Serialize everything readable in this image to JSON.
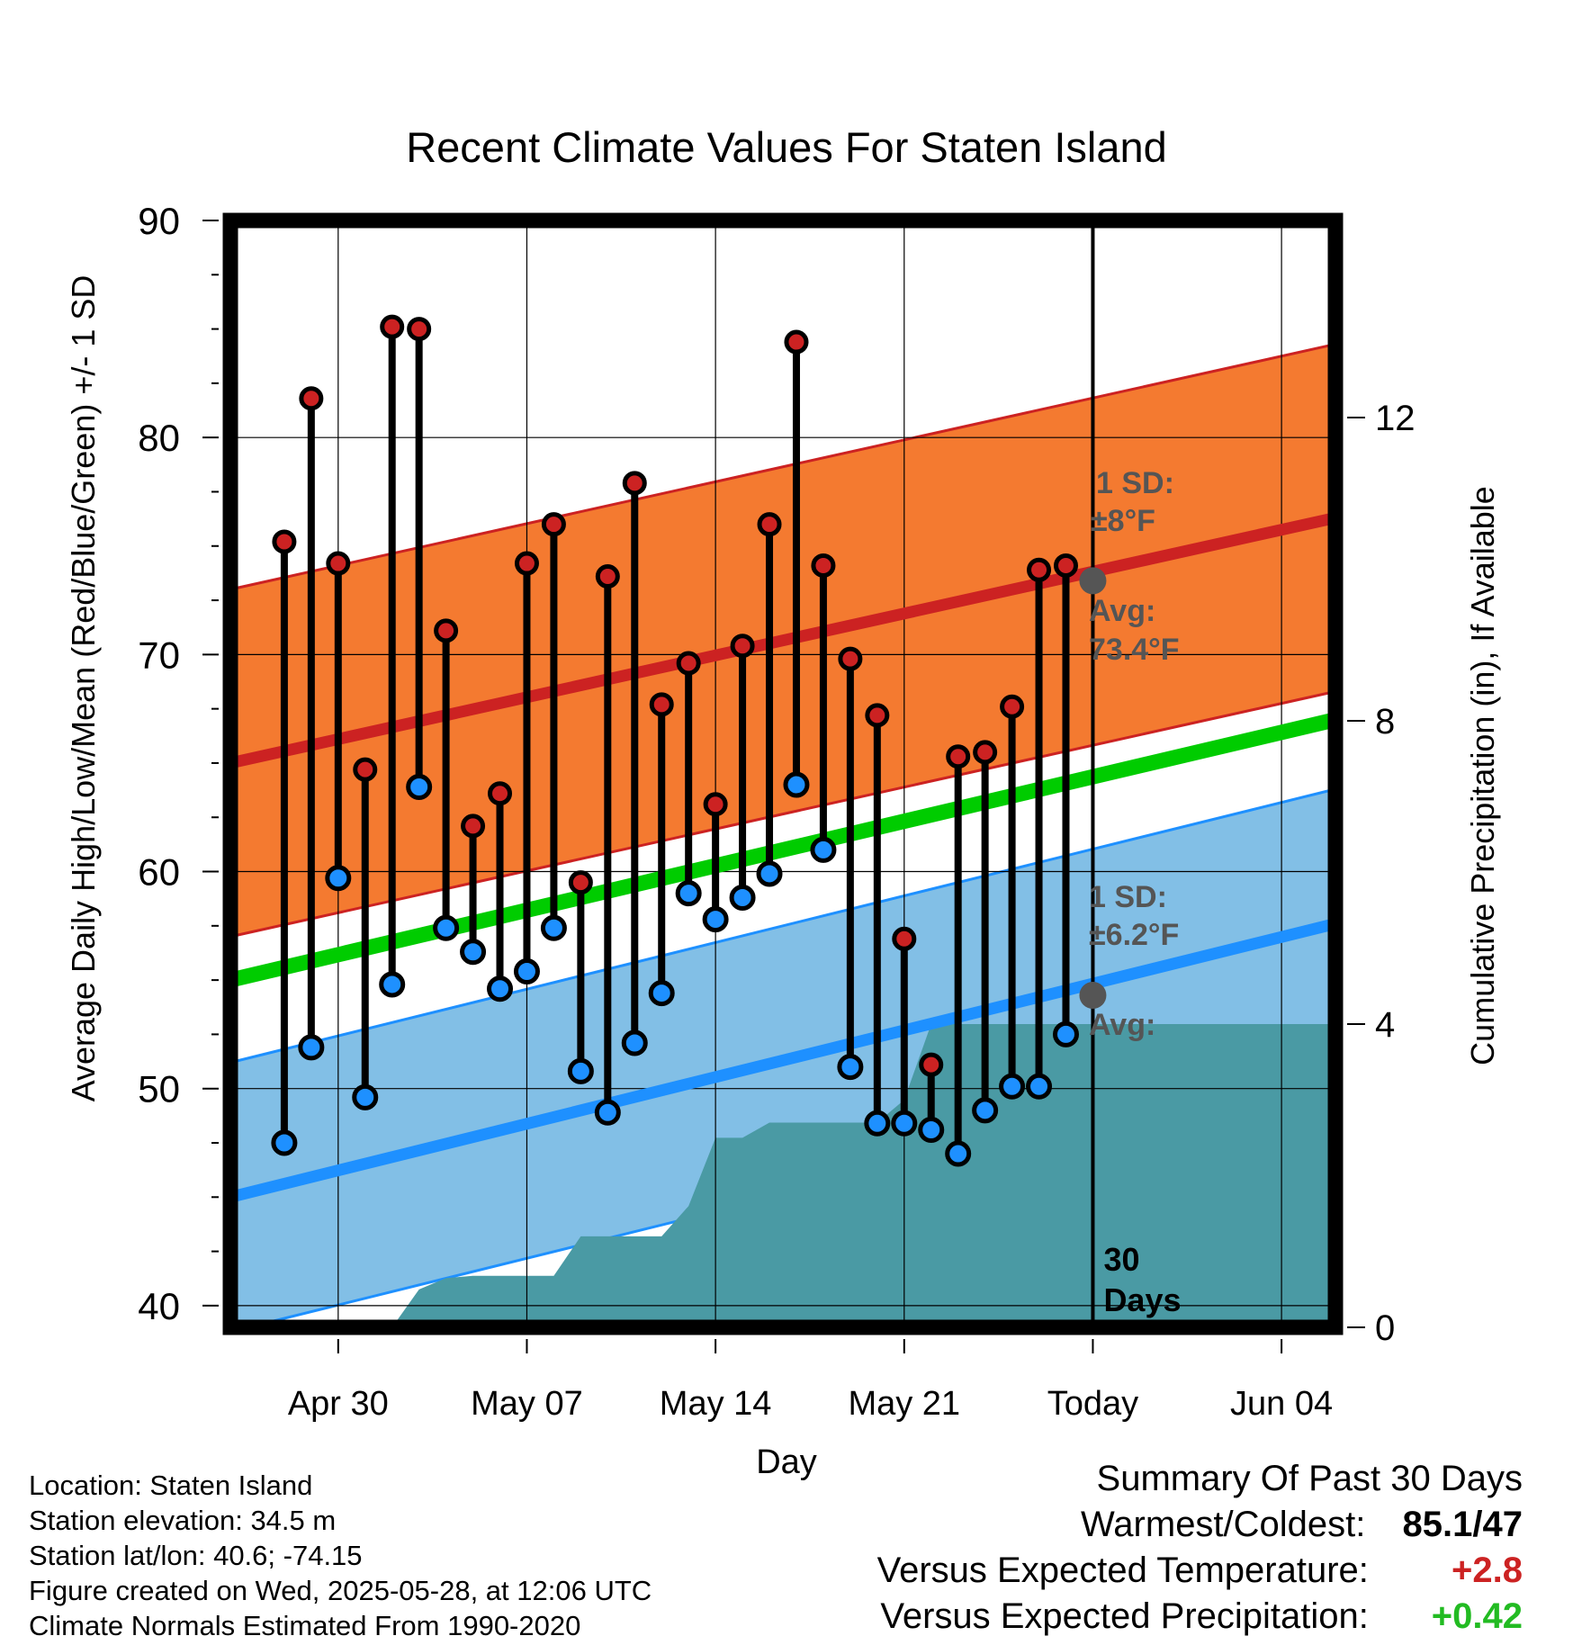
{
  "chart_data": {
    "type": "line",
    "title": "Recent Climate Values For Staten Island",
    "xlabel": "Day",
    "ylabel": "Average Daily High/Low/Mean (Red/Blue/Green) +/- 1 SD",
    "y2label": "Cumulative Precipitation (in), If Available",
    "ylim": [
      39,
      90
    ],
    "y2lim": [
      0,
      14.6
    ],
    "yticks": [
      40,
      50,
      60,
      70,
      80,
      90
    ],
    "y2ticks": [
      0,
      4,
      8,
      12
    ],
    "x_day_range": [
      "Apr 26",
      "Jun 06"
    ],
    "x_tick_labels": [
      {
        "date": "Apr 30",
        "label": "Apr 30"
      },
      {
        "date": "May 07",
        "label": "May 07"
      },
      {
        "date": "May 14",
        "label": "May 14"
      },
      {
        "date": "May 21",
        "label": "May 21"
      },
      {
        "date": "May 28",
        "label": "Today"
      },
      {
        "date": "Jun 04",
        "label": "Jun 04"
      }
    ],
    "today_date": "May 28",
    "period_label": "30 Days",
    "grid": true,
    "colors": {
      "high": "#cc2222",
      "low": "#1e90ff",
      "mean": "#00cc00",
      "high_band": "#f47a30",
      "low_band": "#82bfe6",
      "precip": "#4a9aa4",
      "avg_marker": "#555555",
      "annotation": "#555555",
      "warm": "#cc2222",
      "wet": "#22bb22"
    },
    "normals": {
      "dates": [
        "Apr 26",
        "Jun 06"
      ],
      "high_avg": [
        65,
        76.3
      ],
      "high_sd": 8,
      "low_avg": [
        45,
        57.6
      ],
      "low_sd": 6.2,
      "mean_avg": [
        55,
        67
      ]
    },
    "annotations": {
      "high_sd_label": "1 SD:",
      "high_sd_value": "±8°F",
      "high_avg_label": "Avg:",
      "high_avg_value": "73.4°F",
      "high_avg_point": 73.4,
      "low_sd_label": "1 SD:",
      "low_sd_value": "±6.2°F",
      "low_avg_label": "Avg:",
      "low_avg_point": 54.3
    },
    "series": [
      {
        "name": "High",
        "dates": [
          "Apr 28",
          "Apr 29",
          "Apr 30",
          "May 01",
          "May 02",
          "May 03",
          "May 04",
          "May 05",
          "May 06",
          "May 07",
          "May 08",
          "May 09",
          "May 10",
          "May 11",
          "May 12",
          "May 13",
          "May 14",
          "May 15",
          "May 16",
          "May 17",
          "May 18",
          "May 19",
          "May 20",
          "May 21",
          "May 22",
          "May 23",
          "May 24",
          "May 25",
          "May 26",
          "May 27"
        ],
        "values": [
          75.2,
          81.8,
          74.2,
          64.7,
          85.1,
          85.0,
          71.1,
          62.1,
          63.6,
          74.2,
          76.0,
          59.5,
          73.6,
          77.9,
          67.7,
          69.6,
          63.1,
          70.4,
          76.0,
          84.4,
          74.1,
          69.8,
          67.2,
          56.9,
          51.1,
          65.3,
          65.5,
          67.6,
          73.9,
          74.1
        ]
      },
      {
        "name": "Low",
        "dates": [
          "Apr 28",
          "Apr 29",
          "Apr 30",
          "May 01",
          "May 02",
          "May 03",
          "May 04",
          "May 05",
          "May 06",
          "May 07",
          "May 08",
          "May 09",
          "May 10",
          "May 11",
          "May 12",
          "May 13",
          "May 14",
          "May 15",
          "May 16",
          "May 17",
          "May 18",
          "May 19",
          "May 20",
          "May 21",
          "May 22",
          "May 23",
          "May 24",
          "May 25",
          "May 26",
          "May 27"
        ],
        "values": [
          47.5,
          51.9,
          59.7,
          49.6,
          54.8,
          63.9,
          57.4,
          56.3,
          54.6,
          55.4,
          57.4,
          50.8,
          48.9,
          52.1,
          54.4,
          59.0,
          57.8,
          58.8,
          59.9,
          64.0,
          61.0,
          51.0,
          48.4,
          48.4,
          48.1,
          47.0,
          49.0,
          50.1,
          50.1,
          52.5
        ]
      },
      {
        "name": "Cumulative Precipitation",
        "dates": [
          "May 02",
          "May 03",
          "May 04",
          "May 05",
          "May 06",
          "May 07",
          "May 08",
          "May 09",
          "May 10",
          "May 11",
          "May 12",
          "May 13",
          "May 14",
          "May 15",
          "May 16",
          "May 17",
          "May 18",
          "May 19",
          "May 20",
          "May 21",
          "May 22",
          "May 23",
          "May 24",
          "May 25",
          "May 26",
          "May 27",
          "May 28",
          "Jun 06"
        ],
        "values": [
          0,
          0.5,
          0.65,
          0.68,
          0.68,
          0.68,
          0.68,
          1.2,
          1.2,
          1.2,
          1.2,
          1.6,
          2.5,
          2.5,
          2.7,
          2.7,
          2.7,
          2.7,
          2.7,
          3.0,
          4.0,
          4.0,
          4.0,
          4.0,
          4.0,
          4.0,
          4.0,
          4.0
        ]
      }
    ]
  },
  "info": {
    "location": "Location: Staten Island",
    "elevation": "Station elevation: 34.5 m",
    "latlon": "Station lat/lon: 40.6; -74.15",
    "created": "Figure created on Wed, 2025-05-28, at 12:06 UTC",
    "normals": "Climate Normals Estimated From 1990-2020"
  },
  "summary": {
    "title": "Summary Of Past 30 Days",
    "warmest_label": "Warmest/Coldest:",
    "warmest_value": "85.1/47",
    "temp_label": "Versus Expected Temperature:",
    "temp_value": "+2.8",
    "precip_label": "Versus Expected Precipitation:",
    "precip_value": "+0.42"
  }
}
